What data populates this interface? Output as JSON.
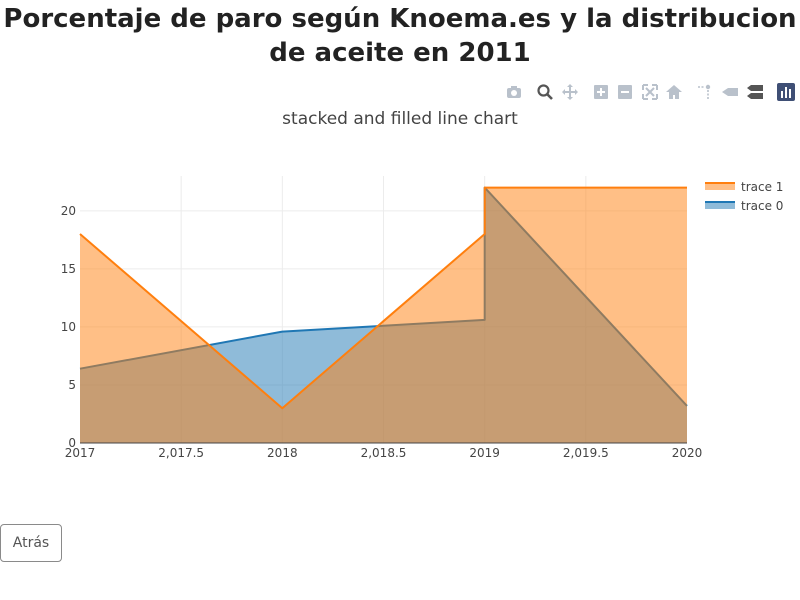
{
  "page": {
    "title": "Porcentaje de paro según Knoema.es y la distribucion de aceite en 2011"
  },
  "modebar": {
    "buttons": [
      "camera-icon",
      "zoom-icon",
      "pan-icon",
      "zoom-in-icon",
      "zoom-out-icon",
      "autoscale-icon",
      "reset-axes-icon",
      "spike-lines-icon",
      "hover-closest-icon",
      "hover-compare-icon",
      "plotly-logo-icon"
    ],
    "colors": {
      "icon": "#b9c1cb",
      "logo_bg": "#3f4f75"
    }
  },
  "footer": {
    "back_label": "Atrás"
  },
  "chart_data": {
    "type": "area",
    "title": "stacked and filled line chart",
    "xlabel": "",
    "ylabel": "",
    "xlim": [
      2017,
      2020
    ],
    "ylim": [
      0,
      23
    ],
    "x_tick_labels": [
      "2017",
      "2,017.5",
      "2018",
      "2,018.5",
      "2019",
      "2,019.5",
      "2020"
    ],
    "y_ticks": [
      0,
      5,
      10,
      15,
      20
    ],
    "grid": true,
    "legend_position": "top-right",
    "series": [
      {
        "name": "trace 0",
        "x": [
          2017,
          2018,
          2019,
          2019,
          2020
        ],
        "y": [
          6.4,
          9.6,
          10.6,
          22,
          3.2
        ],
        "color": "#1f77b4"
      },
      {
        "name": "trace 1",
        "x": [
          2017,
          2018,
          2019,
          2019,
          2020
        ],
        "y": [
          18,
          3.0,
          18,
          22,
          22
        ],
        "color": "#ff7f0e"
      }
    ]
  }
}
